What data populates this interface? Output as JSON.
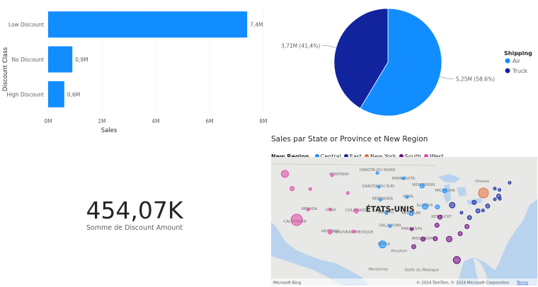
{
  "chart_data": [
    {
      "type": "bar",
      "orientation": "horizontal",
      "categories": [
        "Low Discount",
        "No Discount",
        "High Discount"
      ],
      "values": [
        7.4,
        0.9,
        0.6
      ],
      "value_labels": [
        "7,4M",
        "0,9M",
        "0,6M"
      ],
      "xlabel": "Sales",
      "ylabel": "Discount Class",
      "xlim": [
        0,
        8
      ],
      "x_ticks": [
        "0M",
        "2M",
        "4M",
        "6M",
        "8M"
      ],
      "color": "#118DFF",
      "grid": true
    },
    {
      "type": "pie",
      "style": "pie",
      "legend_title": "Shipping",
      "legend_position": "right",
      "slices": [
        {
          "name": "Air",
          "value": 5.25,
          "label": "5,25M (58,6%)",
          "color": "#118DFF"
        },
        {
          "name": "Truck",
          "value": 3.71,
          "label": "3,71M (41,4%)",
          "color": "#12239E"
        }
      ]
    }
  ],
  "kpi": {
    "value": "454,07K",
    "label": "Somme de Discount Amount"
  },
  "map": {
    "title": "Sales par State or Province et New Region",
    "legend_title": "New Region",
    "legend": [
      {
        "name": "Central",
        "color": "#118DFF"
      },
      {
        "name": "East",
        "color": "#12239E"
      },
      {
        "name": "New York",
        "color": "#E66C37"
      },
      {
        "name": "South",
        "color": "#6B007B"
      },
      {
        "name": "West",
        "color": "#E044A7"
      }
    ],
    "country_label": "ÉTATS-UNIS",
    "place_labels": [
      "MONTANA",
      "DAKOTA DU NORD",
      "MINNESOTA",
      "Ottawa",
      "DAKOTA DU SUD",
      "WISCONSIN",
      "MICHIGAN",
      "IOWA",
      "NEBRASKA",
      "ILLINOIS",
      "NEVADA",
      "UTAH",
      "COLORADO",
      "KANSAS",
      "MISSOURI",
      "KENTUCKY",
      "CALIFORNIE",
      "OKLAHOMA",
      "ARIZONA",
      "NOUVEAU-MEXIQUE",
      "ARKANSAS",
      "TEXAS",
      "MISSISSIPPI",
      "Houston",
      "Monterrey",
      "Golfe du Mexique"
    ],
    "attribution": "© 2024 TomTom, © 2024 Microsoft Corporation",
    "terms": "Terms",
    "logo_text": "Microsoft Bing",
    "bubbles": [
      {
        "region": "West",
        "lon": -122.4,
        "lat": 47.3,
        "size": 5
      },
      {
        "region": "West",
        "lon": -120.7,
        "lat": 44.0,
        "size": 3
      },
      {
        "region": "West",
        "lon": -119.6,
        "lat": 37.0,
        "size": 8
      },
      {
        "region": "West",
        "lon": -116.4,
        "lat": 43.9,
        "size": 2
      },
      {
        "region": "West",
        "lon": -111.2,
        "lat": 47.0,
        "size": 2
      },
      {
        "region": "West",
        "lon": -107.5,
        "lat": 43.0,
        "size": 2
      },
      {
        "region": "West",
        "lon": -116.9,
        "lat": 39.3,
        "size": 2
      },
      {
        "region": "West",
        "lon": -111.7,
        "lat": 39.3,
        "size": 2
      },
      {
        "region": "West",
        "lon": -105.5,
        "lat": 39.0,
        "size": 3
      },
      {
        "region": "West",
        "lon": -111.7,
        "lat": 34.3,
        "size": 3
      },
      {
        "region": "West",
        "lon": -106.1,
        "lat": 34.4,
        "size": 2
      },
      {
        "region": "Central",
        "lon": -100.5,
        "lat": 47.5,
        "size": 2
      },
      {
        "region": "Central",
        "lon": -100.2,
        "lat": 44.4,
        "size": 2
      },
      {
        "region": "Central",
        "lon": -94.3,
        "lat": 46.3,
        "size": 2
      },
      {
        "region": "Central",
        "lon": -89.9,
        "lat": 44.6,
        "size": 3
      },
      {
        "region": "Central",
        "lon": -93.5,
        "lat": 42.1,
        "size": 2
      },
      {
        "region": "Central",
        "lon": -99.8,
        "lat": 41.5,
        "size": 2
      },
      {
        "region": "Central",
        "lon": -98.4,
        "lat": 38.5,
        "size": 2
      },
      {
        "region": "Central",
        "lon": -92.5,
        "lat": 38.4,
        "size": 3
      },
      {
        "region": "Central",
        "lon": -89.2,
        "lat": 40.0,
        "size": 4
      },
      {
        "region": "Central",
        "lon": -86.3,
        "lat": 39.9,
        "size": 3
      },
      {
        "region": "Central",
        "lon": -84.6,
        "lat": 43.5,
        "size": 3
      },
      {
        "region": "Central",
        "lon": -99.3,
        "lat": 31.5,
        "size": 5
      },
      {
        "region": "Central",
        "lon": -97.5,
        "lat": 35.6,
        "size": 2
      },
      {
        "region": "East",
        "lon": -82.8,
        "lat": 40.3,
        "size": 4
      },
      {
        "region": "East",
        "lon": -77.6,
        "lat": 40.9,
        "size": 3
      },
      {
        "region": "East",
        "lon": -80.6,
        "lat": 38.6,
        "size": 2
      },
      {
        "region": "East",
        "lon": -78.7,
        "lat": 37.5,
        "size": 3
      },
      {
        "region": "East",
        "lon": -76.7,
        "lat": 39.0,
        "size": 3
      },
      {
        "region": "East",
        "lon": -75.5,
        "lat": 39.1,
        "size": 2
      },
      {
        "region": "East",
        "lon": -74.4,
        "lat": 40.1,
        "size": 3
      },
      {
        "region": "East",
        "lon": -72.7,
        "lat": 41.6,
        "size": 2
      },
      {
        "region": "East",
        "lon": -71.8,
        "lat": 42.3,
        "size": 3
      },
      {
        "region": "East",
        "lon": -71.5,
        "lat": 41.7,
        "size": 2
      },
      {
        "region": "East",
        "lon": -71.6,
        "lat": 43.7,
        "size": 2
      },
      {
        "region": "East",
        "lon": -72.7,
        "lat": 44.0,
        "size": 2
      },
      {
        "region": "East",
        "lon": -69.2,
        "lat": 45.3,
        "size": 2
      },
      {
        "region": "New York",
        "lon": -75.4,
        "lat": 43.0,
        "size": 7
      },
      {
        "region": "South",
        "lon": -85.7,
        "lat": 37.6,
        "size": 3
      },
      {
        "region": "South",
        "lon": -86.4,
        "lat": 35.8,
        "size": 3
      },
      {
        "region": "South",
        "lon": -79.3,
        "lat": 35.5,
        "size": 3
      },
      {
        "region": "South",
        "lon": -80.9,
        "lat": 33.9,
        "size": 3
      },
      {
        "region": "South",
        "lon": -83.5,
        "lat": 32.7,
        "size": 4
      },
      {
        "region": "South",
        "lon": -86.8,
        "lat": 32.8,
        "size": 3
      },
      {
        "region": "South",
        "lon": -89.7,
        "lat": 32.7,
        "size": 3
      },
      {
        "region": "South",
        "lon": -91.9,
        "lat": 31.0,
        "size": 3
      },
      {
        "region": "South",
        "lon": -92.4,
        "lat": 34.9,
        "size": 2
      },
      {
        "region": "South",
        "lon": -81.7,
        "lat": 28.0,
        "size": 5
      }
    ]
  }
}
